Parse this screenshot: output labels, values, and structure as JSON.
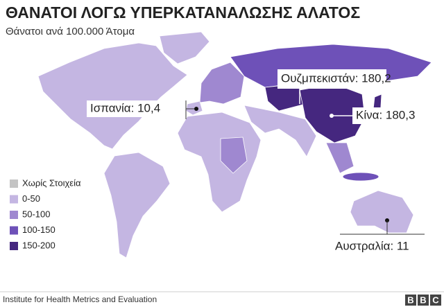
{
  "title": "ΘΑΝΑΤΟΙ ΛΟΓΩ ΥΠΕΡΚΑΤΑΝΑΛΩΣΗΣ ΑΛΑΤΟΣ",
  "subtitle": "Θάνατοι ανά 100.000 Άτομα",
  "legend": [
    {
      "label": "Χωρίς Στοιχεία",
      "color": "#c4c4c4"
    },
    {
      "label": "0-50",
      "color": "#c4b6e2"
    },
    {
      "label": "50-100",
      "color": "#9f88d0"
    },
    {
      "label": "100-150",
      "color": "#6e51b8"
    },
    {
      "label": "150-200",
      "color": "#45277f"
    }
  ],
  "annotations": [
    "Ουζμπεκιστάν: 180,2",
    "Ισπανία: 10,4",
    "Κίνα: 180,3",
    "Αυστραλία: 11"
  ],
  "source": "Institute for Health Metrics and Evaluation",
  "logo": [
    "B",
    "B",
    "C"
  ]
}
